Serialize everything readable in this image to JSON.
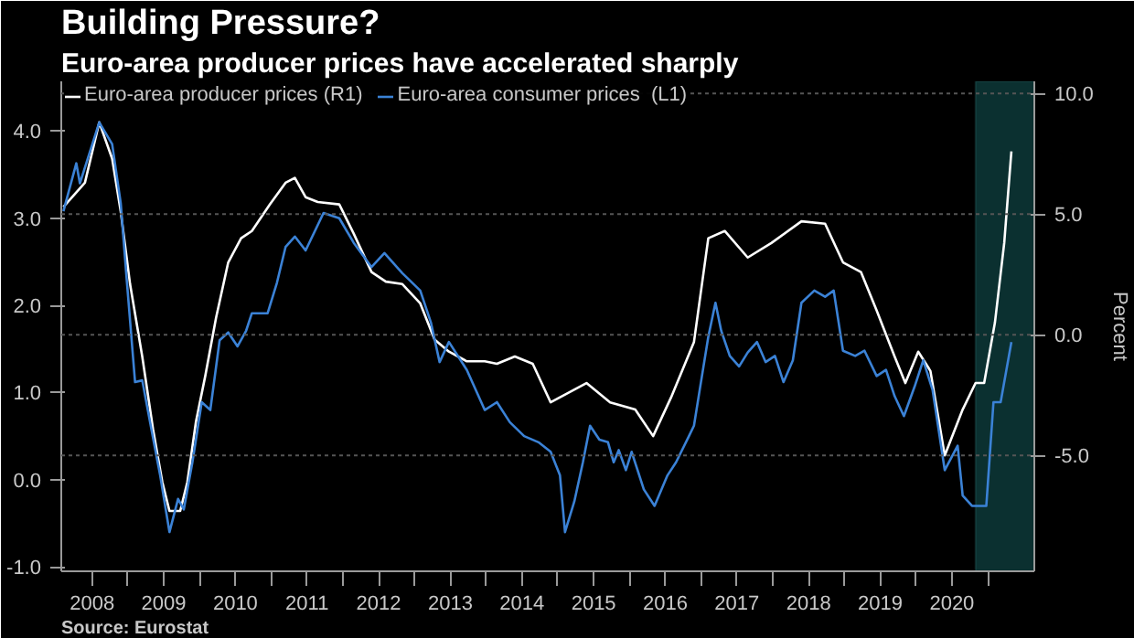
{
  "chart_data": {
    "type": "line",
    "title": "Building Pressure?",
    "subtitle": "Euro-area producer prices have accelerated sharply",
    "y2label": "Percent",
    "annotations": [
      "Source: Eurostat"
    ],
    "legend": "top left",
    "grid": "y",
    "marker": "none",
    "line_style": "solid",
    "xlim": [
      2008.07,
      2021.65
    ],
    "xticks": [
      {
        "value": 2008.5,
        "label": "2008"
      },
      {
        "value": 2009,
        "label": null
      },
      {
        "value": 2009.5,
        "label": "2009"
      },
      {
        "value": 2010,
        "label": null
      },
      {
        "value": 2010.5,
        "label": "2010"
      },
      {
        "value": 2011,
        "label": null
      },
      {
        "value": 2011.5,
        "label": "2011"
      },
      {
        "value": 2012,
        "label": null
      },
      {
        "value": 2012.5,
        "label": "2012"
      },
      {
        "value": 2013,
        "label": null
      },
      {
        "value": 2013.5,
        "label": "2013"
      },
      {
        "value": 2014,
        "label": null
      },
      {
        "value": 2014.5,
        "label": "2014"
      },
      {
        "value": 2015,
        "label": null
      },
      {
        "value": 2015.5,
        "label": "2015"
      },
      {
        "value": 2016,
        "label": null
      },
      {
        "value": 2016.5,
        "label": "2016"
      },
      {
        "value": 2017,
        "label": null
      },
      {
        "value": 2017.5,
        "label": "2017"
      },
      {
        "value": 2018,
        "label": null
      },
      {
        "value": 2018.5,
        "label": "2018"
      },
      {
        "value": 2019,
        "label": null
      },
      {
        "value": 2019.5,
        "label": "2019"
      },
      {
        "value": 2020,
        "label": null
      },
      {
        "value": 2020.5,
        "label": "2020"
      },
      {
        "value": 2021,
        "label": null
      }
    ],
    "ylim": [
      -1.05,
      4.57
    ],
    "yticks": [
      {
        "value": -1,
        "label": "-1.0"
      },
      {
        "value": 0,
        "label": "0.0"
      },
      {
        "value": 1,
        "label": "1.0"
      },
      {
        "value": 2,
        "label": "2.0"
      },
      {
        "value": 3,
        "label": "3.0"
      },
      {
        "value": 4,
        "label": "4.0"
      }
    ],
    "y2lim": [
      -9.8,
      10.5
    ],
    "y2ticks": [
      {
        "value": -5,
        "label": "-5.0"
      },
      {
        "value": 0,
        "label": "0.0"
      },
      {
        "value": 5,
        "label": "5.0"
      },
      {
        "value": 10,
        "label": "10.0"
      }
    ],
    "bands": [
      {
        "axis": "x",
        "from": 2020.83,
        "to": 2021.65,
        "color": "#0b3030"
      }
    ],
    "series": [
      {
        "name": "Euro-area producer prices (R1)",
        "color": "#ffffff",
        "axis": "y2",
        "x": [
          2008.1,
          2008.4,
          2008.6,
          2008.78,
          2008.9,
          2009.03,
          2009.2,
          2009.35,
          2009.48,
          2009.58,
          2009.73,
          2009.83,
          2009.95,
          2010.08,
          2010.23,
          2010.4,
          2010.58,
          2010.73,
          2010.98,
          2011.2,
          2011.33,
          2011.48,
          2011.65,
          2011.95,
          2012.15,
          2012.4,
          2012.6,
          2012.83,
          2013.08,
          2013.28,
          2013.48,
          2013.73,
          2013.98,
          2014.15,
          2014.4,
          2014.65,
          2014.9,
          2015.4,
          2015.73,
          2016.08,
          2016.33,
          2016.58,
          2016.9,
          2017.1,
          2017.33,
          2017.65,
          2017.98,
          2018.4,
          2018.73,
          2018.98,
          2019.23,
          2019.45,
          2019.7,
          2019.85,
          2020.03,
          2020.2,
          2020.4,
          2020.65,
          2020.83,
          2020.95,
          2021.1,
          2021.23,
          2021.33
        ],
        "values": [
          5.3,
          6.3,
          8.8,
          7.3,
          5.1,
          2.1,
          -0.9,
          -3.9,
          -6.1,
          -7.3,
          -7.3,
          -6.1,
          -3.6,
          -1.7,
          0.7,
          3.0,
          4.0,
          4.3,
          5.4,
          6.3,
          6.5,
          5.7,
          5.5,
          5.4,
          4.2,
          2.6,
          2.2,
          2.1,
          1.3,
          -0.2,
          -0.7,
          -1.1,
          -1.1,
          -1.2,
          -0.9,
          -1.2,
          -2.8,
          -2.0,
          -2.8,
          -3.1,
          -4.2,
          -2.6,
          -0.3,
          4.0,
          4.3,
          3.2,
          3.8,
          4.7,
          4.6,
          3.0,
          2.6,
          1.0,
          -0.9,
          -2.0,
          -0.7,
          -1.5,
          -5.0,
          -3.1,
          -2.0,
          -2.0,
          0.5,
          3.8,
          7.6
        ]
      },
      {
        "name": "Euro-area consumer prices  (L1)",
        "color": "#3b82d6",
        "axis": "y",
        "x": [
          2008.1,
          2008.28,
          2008.33,
          2008.6,
          2008.78,
          2008.9,
          2008.98,
          2009.1,
          2009.2,
          2009.33,
          2009.45,
          2009.58,
          2009.7,
          2009.78,
          2009.9,
          2010.03,
          2010.15,
          2010.28,
          2010.4,
          2010.53,
          2010.65,
          2010.73,
          2010.95,
          2011.08,
          2011.2,
          2011.33,
          2011.48,
          2011.73,
          2011.95,
          2012.15,
          2012.4,
          2012.58,
          2012.83,
          2013.08,
          2013.23,
          2013.35,
          2013.48,
          2013.73,
          2013.98,
          2014.15,
          2014.33,
          2014.53,
          2014.73,
          2014.9,
          2015.03,
          2015.1,
          2015.23,
          2015.35,
          2015.45,
          2015.58,
          2015.7,
          2015.78,
          2015.85,
          2015.95,
          2016.03,
          2016.2,
          2016.35,
          2016.53,
          2016.65,
          2016.83,
          2016.9,
          2016.98,
          2017.1,
          2017.2,
          2017.28,
          2017.4,
          2017.53,
          2017.65,
          2017.78,
          2017.9,
          2018.03,
          2018.15,
          2018.28,
          2018.4,
          2018.58,
          2018.73,
          2018.85,
          2018.98,
          2019.15,
          2019.28,
          2019.45,
          2019.58,
          2019.7,
          2019.83,
          2019.98,
          2020.1,
          2020.23,
          2020.4,
          2020.58,
          2020.65,
          2020.78,
          2020.98,
          2021.08,
          2021.18,
          2021.33
        ],
        "values": [
          3.08,
          3.63,
          3.4,
          4.1,
          3.85,
          3.17,
          2.33,
          1.12,
          1.14,
          0.57,
          0.05,
          -0.6,
          -0.22,
          -0.34,
          0.2,
          0.89,
          0.8,
          1.6,
          1.69,
          1.53,
          1.71,
          1.91,
          1.91,
          2.26,
          2.67,
          2.79,
          2.63,
          3.06,
          3.0,
          2.72,
          2.44,
          2.6,
          2.37,
          2.17,
          1.8,
          1.35,
          1.58,
          1.26,
          0.8,
          0.89,
          0.66,
          0.5,
          0.43,
          0.32,
          0.05,
          -0.6,
          -0.25,
          0.2,
          0.62,
          0.46,
          0.43,
          0.2,
          0.34,
          0.11,
          0.32,
          -0.11,
          -0.3,
          0.05,
          0.2,
          0.5,
          0.62,
          1.03,
          1.64,
          2.03,
          1.71,
          1.42,
          1.3,
          1.46,
          1.58,
          1.35,
          1.42,
          1.12,
          1.37,
          2.03,
          2.17,
          2.1,
          2.17,
          1.48,
          1.42,
          1.48,
          1.19,
          1.26,
          0.96,
          0.73,
          1.07,
          1.37,
          1.03,
          0.11,
          0.39,
          -0.18,
          -0.3,
          -0.3,
          0.89,
          0.89,
          1.58
        ]
      }
    ]
  }
}
